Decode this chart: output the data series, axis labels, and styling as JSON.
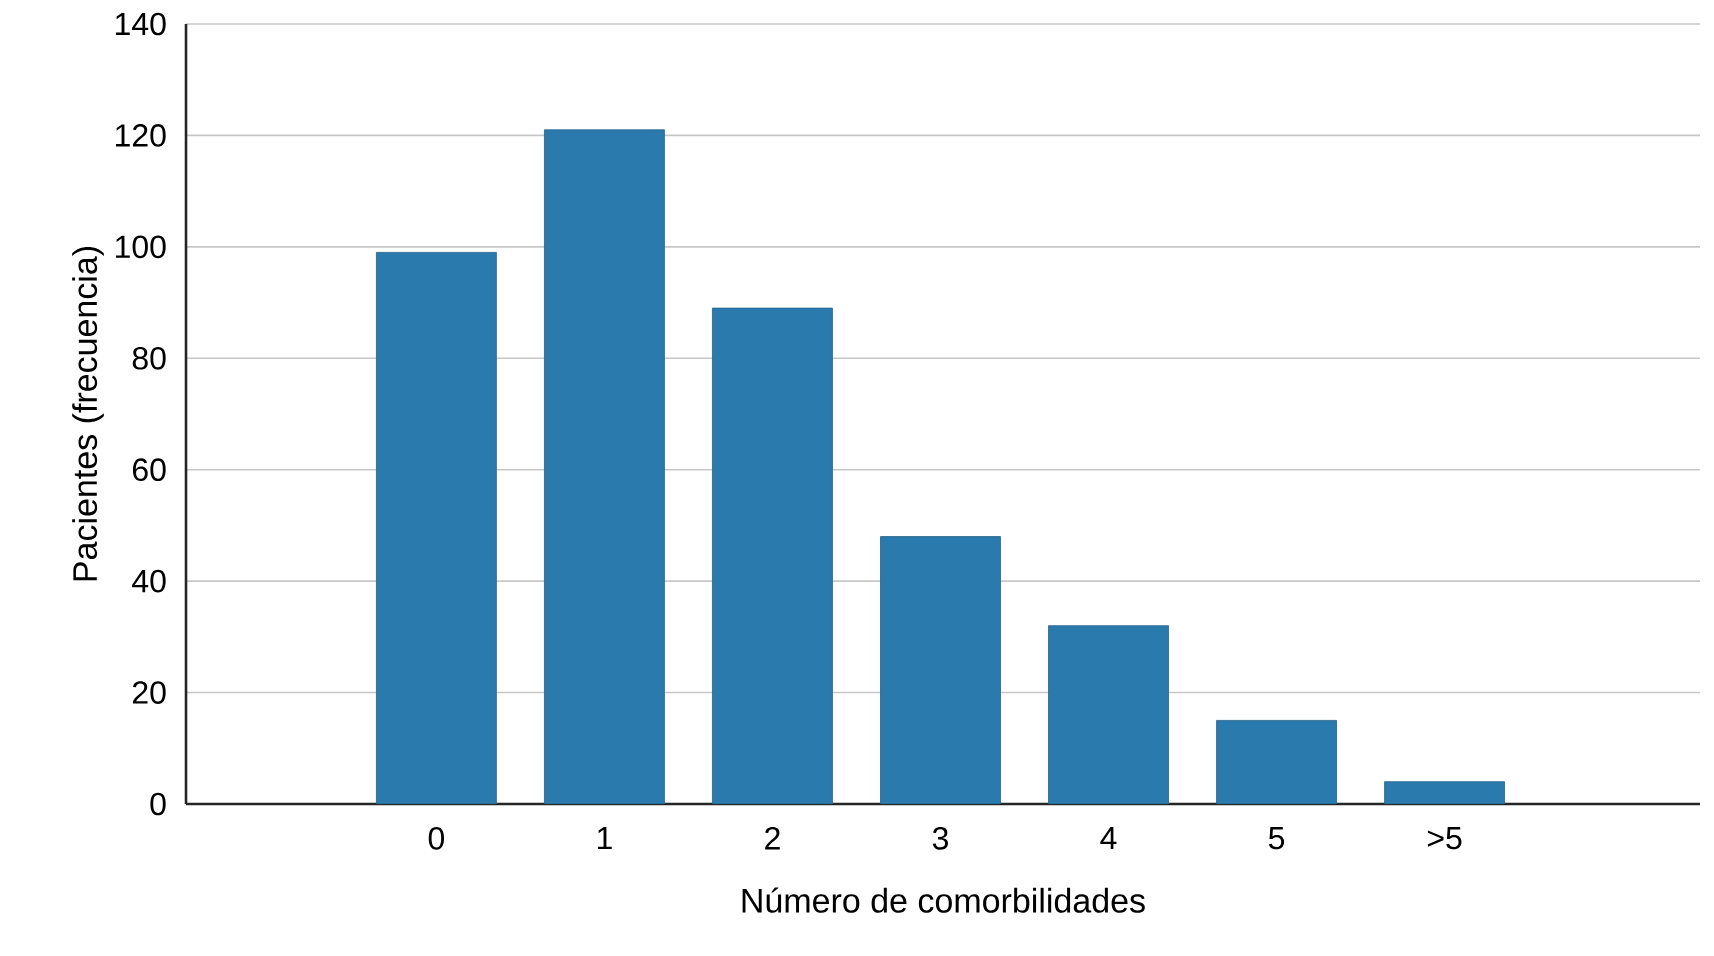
{
  "chart_data": {
    "type": "bar",
    "xlabel": "Número de comorbilidades",
    "ylabel": "Pacientes (frecuencia)",
    "categories": [
      "0",
      "1",
      "2",
      "3",
      "4",
      "5",
      ">5"
    ],
    "values": [
      99,
      121,
      89,
      48,
      32,
      15,
      4
    ],
    "color": "#2a7aad",
    "ylim": [
      0,
      140
    ],
    "yticks": [
      0,
      20,
      40,
      60,
      80,
      100,
      120,
      140
    ],
    "grid": "y"
  }
}
